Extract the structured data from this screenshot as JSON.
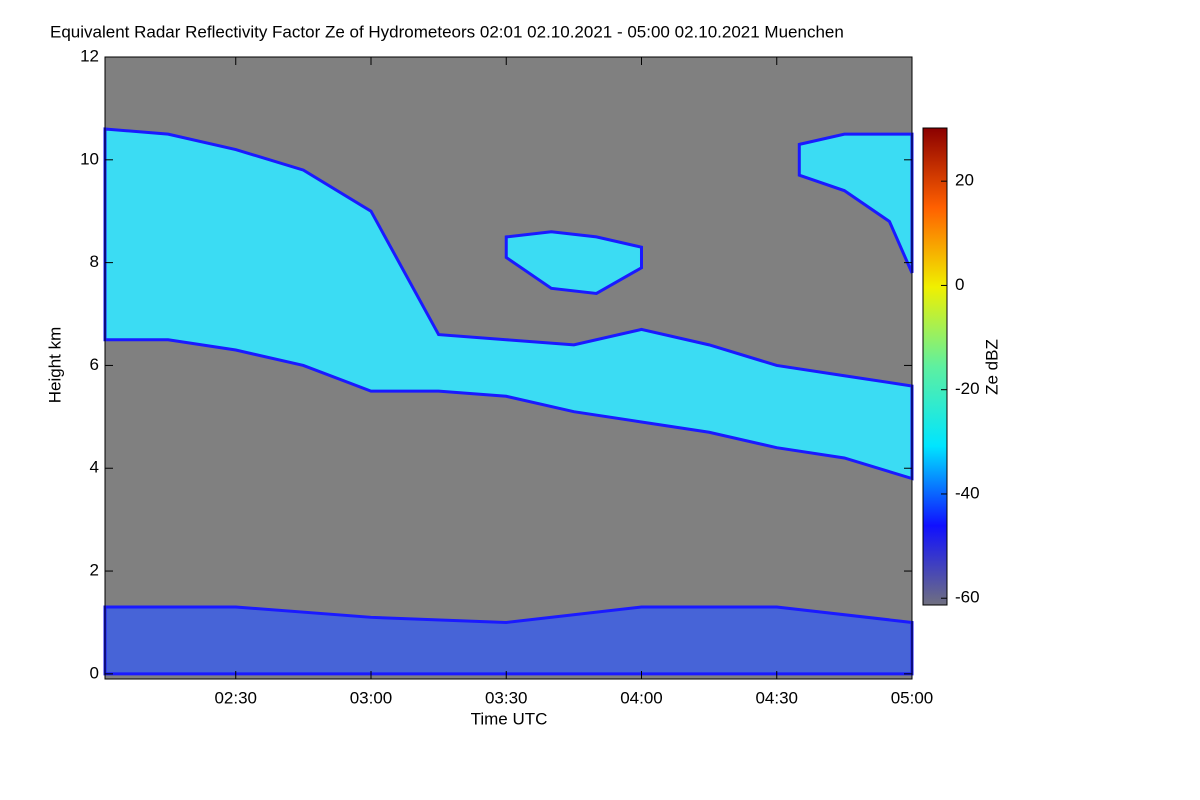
{
  "chart_data": {
    "type": "heatmap",
    "title": "Equivalent Radar Reflectivity Factor Ze of Hydrometeors   02:01 02.10.2021 - 05:00 02.10.2021 Muenchen",
    "x_label": "Time UTC",
    "y_label": "Height km",
    "xlim": [
      "02:01",
      "05:00"
    ],
    "xticks": [
      "02:30",
      "03:00",
      "03:30",
      "04:00",
      "04:30",
      "05:00"
    ],
    "ylim": [
      -0.1,
      12
    ],
    "yticks": [
      0,
      2,
      4,
      6,
      8,
      10,
      12
    ],
    "background": "#808080",
    "colorbar": {
      "label": "Ze dBZ",
      "clim": [
        -61.3,
        30.2
      ],
      "ticks": [
        20,
        0,
        -20,
        -40,
        -60
      ],
      "colors": [
        "#707080",
        "#1010ff",
        "#00e5ff",
        "#5ef0a0",
        "#f0f000",
        "#ff6000",
        "#8b0000"
      ]
    },
    "layers": [
      {
        "color": "#33e6ff",
        "x": [
          "02:01",
          "02:15",
          "02:30",
          "02:45",
          "03:00",
          "03:15",
          "03:30",
          "03:45",
          "04:00",
          "04:15",
          "04:30",
          "04:45",
          "05:00"
        ],
        "top": [
          10.6,
          10.5,
          10.2,
          9.8,
          9.0,
          6.6,
          6.5,
          6.4,
          6.7,
          6.4,
          6.0,
          5.8,
          5.6
        ],
        "base": [
          6.5,
          6.5,
          6.3,
          6.0,
          5.5,
          5.5,
          5.4,
          5.1,
          4.9,
          4.7,
          4.4,
          4.2,
          3.8
        ]
      },
      {
        "color": "#33e6ff",
        "x": [
          "03:30",
          "03:40",
          "03:50",
          "04:00"
        ],
        "top": [
          8.5,
          8.6,
          8.5,
          8.3
        ],
        "base": [
          8.1,
          7.5,
          7.4,
          7.9
        ]
      },
      {
        "color": "#33e6ff",
        "x": [
          "04:35",
          "04:45",
          "04:55",
          "05:00"
        ],
        "top": [
          10.3,
          10.5,
          10.5,
          10.5
        ],
        "base": [
          9.7,
          9.4,
          8.8,
          7.8
        ]
      },
      {
        "color": "#4060e0",
        "x": [
          "02:01",
          "02:30",
          "03:00",
          "03:30",
          "04:00",
          "04:30",
          "05:00"
        ],
        "top": [
          1.3,
          1.3,
          1.1,
          1.0,
          1.3,
          1.3,
          1.0
        ],
        "base": [
          0,
          0,
          0,
          0,
          0,
          0,
          0
        ]
      }
    ]
  }
}
